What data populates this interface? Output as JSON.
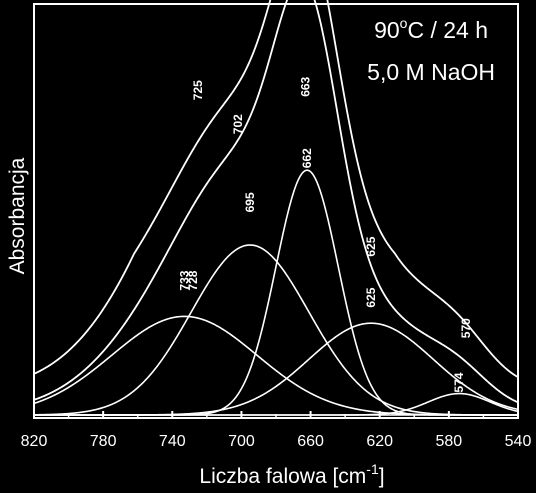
{
  "chart_data": {
    "type": "line",
    "xlabel": "Liczba falowa [cm",
    "xlabel_sup": "-1",
    "xlabel_suffix": "]",
    "ylabel": "Absorbancja",
    "xlim": [
      820,
      540
    ],
    "x_reversed": true,
    "ylim": [
      0,
      1
    ],
    "y_ticks_labeled": false,
    "grid": false,
    "x_ticks": [
      820,
      780,
      740,
      700,
      660,
      620,
      580,
      540
    ],
    "x_tick_labels": [
      "820",
      "780",
      "740",
      "700",
      "660",
      "620",
      "580",
      "540"
    ],
    "annotations": [
      {
        "line1_pre": "90",
        "line1_sup": "o",
        "line1_post": "C / 24 h"
      },
      {
        "text": "5,0 M NaOH"
      }
    ],
    "components": [
      {
        "center": 733,
        "height": 0.29,
        "width": 42
      },
      {
        "center": 695,
        "height": 0.5,
        "width": 34
      },
      {
        "center": 662,
        "height": 0.72,
        "width": 18
      },
      {
        "center": 625,
        "height": 0.27,
        "width": 36
      },
      {
        "center": 574,
        "height": 0.063,
        "width": 18
      }
    ],
    "envelope_offset": 0.1,
    "envelope_baseline": 0.075,
    "colors": {
      "background": "#000000",
      "lines": "#ffffff"
    },
    "peak_labels": [
      {
        "text": "725",
        "x": 725,
        "y": 0.92
      },
      {
        "text": "702",
        "x": 702,
        "y": 0.82
      },
      {
        "text": "663",
        "x": 663,
        "y": 0.93
      },
      {
        "text": "695",
        "x": 695,
        "y": 0.59
      },
      {
        "text": "662",
        "x": 662,
        "y": 0.72
      },
      {
        "text": "625",
        "x": 625,
        "y": 0.46
      },
      {
        "text": "733",
        "x": 733,
        "y": 0.36
      },
      {
        "text": "728",
        "x": 728,
        "y": 0.36
      },
      {
        "text": "625",
        "x": 625,
        "y": 0.31
      },
      {
        "text": "570",
        "x": 570,
        "y": 0.22
      },
      {
        "text": "574",
        "x": 574,
        "y": 0.06
      }
    ]
  }
}
